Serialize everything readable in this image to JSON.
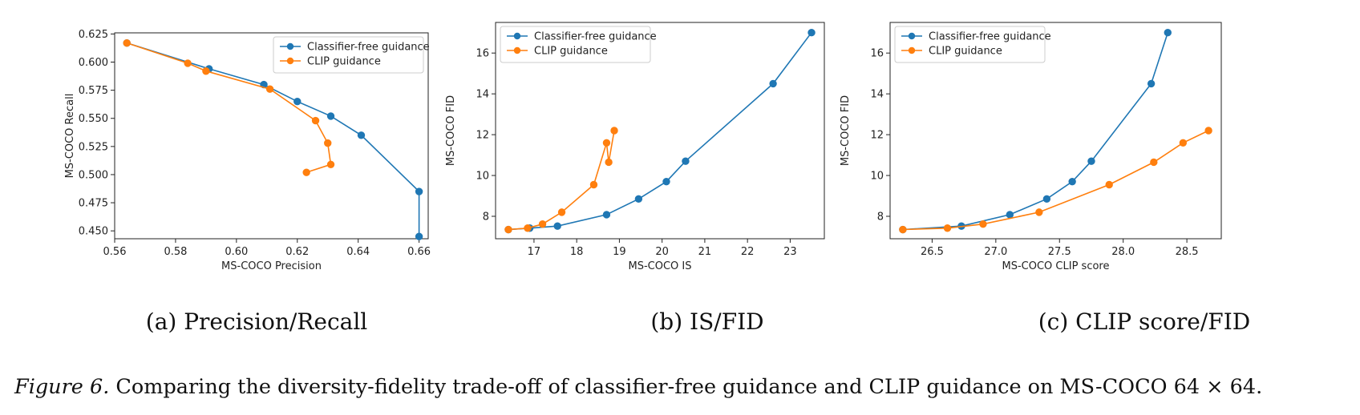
{
  "chart_data": [
    {
      "type": "line",
      "subcaption": "(a) Precision/Recall",
      "xlabel": "MS-COCO Precision",
      "ylabel": "MS-COCO Recall",
      "xlim": [
        0.56,
        0.663
      ],
      "ylim": [
        0.443,
        0.626
      ],
      "xticks": [
        "0.56",
        "0.58",
        "0.60",
        "0.62",
        "0.64",
        "0.66"
      ],
      "yticks": [
        "0.450",
        "0.475",
        "0.500",
        "0.525",
        "0.550",
        "0.575",
        "0.600",
        "0.625"
      ],
      "legend_position": "top-right",
      "grid": false,
      "series": [
        {
          "name": "Classifier-free guidance",
          "color": "#1f77b4",
          "x": [
            0.564,
            0.591,
            0.609,
            0.62,
            0.631,
            0.641,
            0.66,
            0.66
          ],
          "y": [
            0.617,
            0.594,
            0.58,
            0.565,
            0.552,
            0.535,
            0.485,
            0.445
          ]
        },
        {
          "name": "CLIP guidance",
          "color": "#ff7f0e",
          "x": [
            0.564,
            0.584,
            0.59,
            0.611,
            0.626,
            0.63,
            0.631,
            0.623
          ],
          "y": [
            0.617,
            0.599,
            0.592,
            0.576,
            0.548,
            0.528,
            0.509,
            0.502
          ]
        }
      ]
    },
    {
      "type": "line",
      "subcaption": "(b) IS/FID",
      "xlabel": "MS-COCO IS",
      "ylabel": "MS-COCO FID",
      "xlim": [
        16.1,
        23.8
      ],
      "ylim": [
        6.9,
        17.5
      ],
      "xticks": [
        "17",
        "18",
        "19",
        "20",
        "21",
        "22",
        "23"
      ],
      "yticks": [
        "8",
        "10",
        "12",
        "14",
        "16"
      ],
      "legend_position": "top-left",
      "grid": false,
      "series": [
        {
          "name": "Classifier-free guidance",
          "color": "#1f77b4",
          "x": [
            16.4,
            16.9,
            17.55,
            18.7,
            19.45,
            20.1,
            20.55,
            22.6,
            23.5
          ],
          "y": [
            7.35,
            7.42,
            7.52,
            8.08,
            8.85,
            9.7,
            10.7,
            14.5,
            17.0
          ]
        },
        {
          "name": "CLIP guidance",
          "color": "#ff7f0e",
          "x": [
            16.4,
            16.85,
            17.2,
            17.65,
            18.4,
            18.7,
            18.75,
            18.88
          ],
          "y": [
            7.35,
            7.42,
            7.62,
            8.2,
            9.55,
            11.6,
            10.65,
            12.2
          ]
        }
      ]
    },
    {
      "type": "line",
      "subcaption": "(c) CLIP score/FID",
      "xlabel": "MS-COCO CLIP score",
      "ylabel": "MS-COCO FID",
      "xlim": [
        26.17,
        28.77
      ],
      "ylim": [
        6.9,
        17.5
      ],
      "xticks": [
        "26.5",
        "27.0",
        "27.5",
        "28.0",
        "28.5"
      ],
      "yticks": [
        "8",
        "10",
        "12",
        "14",
        "16"
      ],
      "legend_position": "top-left",
      "grid": false,
      "series": [
        {
          "name": "Classifier-free guidance",
          "color": "#1f77b4",
          "x": [
            26.27,
            26.73,
            27.11,
            27.4,
            27.6,
            27.75,
            28.22,
            28.35
          ],
          "y": [
            7.35,
            7.52,
            8.08,
            8.85,
            9.7,
            10.7,
            14.5,
            17.0
          ]
        },
        {
          "name": "CLIP guidance",
          "color": "#ff7f0e",
          "x": [
            26.27,
            26.62,
            26.9,
            27.34,
            27.89,
            28.24,
            28.47,
            28.67
          ],
          "y": [
            7.35,
            7.42,
            7.62,
            8.2,
            9.55,
            10.65,
            11.6,
            12.2
          ]
        }
      ]
    }
  ],
  "caption": {
    "label": "Figure 6.",
    "text": " Comparing the diversity-fidelity trade-off of classifier-free guidance and CLIP guidance on MS-COCO 64 × 64."
  }
}
